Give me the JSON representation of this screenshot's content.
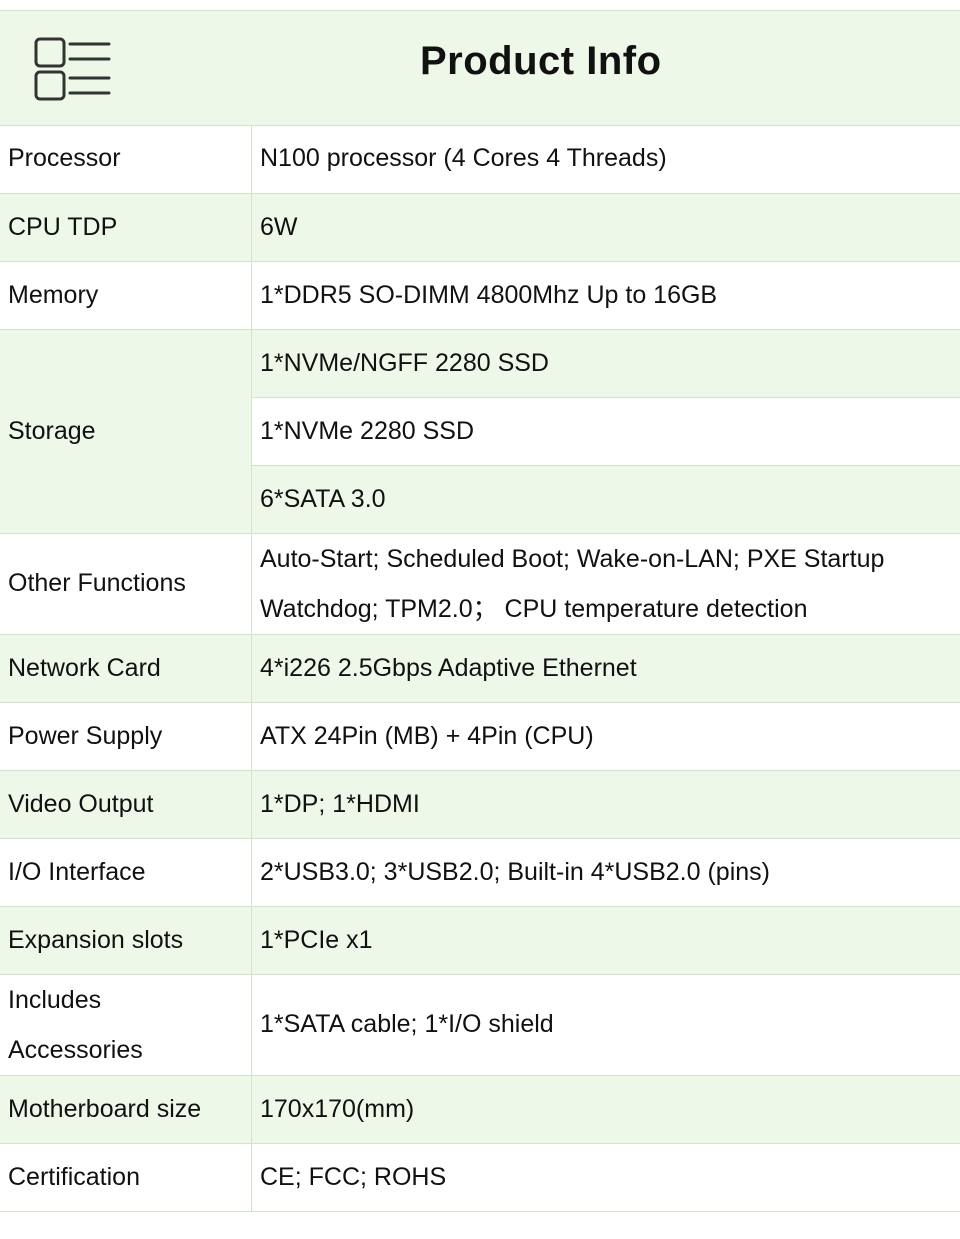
{
  "title": "Product Info",
  "header_icon": "list-icon",
  "colors": {
    "shaded": "#eef8e8",
    "border": "#cfe5c8"
  },
  "rows": [
    {
      "label": "Processor",
      "value": "N100 processor (4 Cores 4 Threads)"
    },
    {
      "label": "CPU TDP",
      "value": "6W"
    },
    {
      "label": "Memory",
      "value": "1*DDR5 SO-DIMM 4800Mhz Up to 16GB"
    },
    {
      "label": "Storage",
      "values": [
        "1*NVMe/NGFF 2280 SSD",
        "1*NVMe 2280 SSD",
        "6*SATA 3.0"
      ]
    },
    {
      "label": "Other Functions",
      "lines": [
        "Auto-Start; Scheduled Boot; Wake-on-LAN; PXE Startup",
        "Watchdog; TPM2.0； CPU temperature detection"
      ]
    },
    {
      "label": "Network Card",
      "value": "4*i226 2.5Gbps Adaptive Ethernet"
    },
    {
      "label": "Power Supply",
      "value": "ATX 24Pin (MB) + 4Pin (CPU)"
    },
    {
      "label": "Video Output",
      "value": "1*DP; 1*HDMI"
    },
    {
      "label": "I/O Interface",
      "value": "2*USB3.0; 3*USB2.0; Built-in 4*USB2.0 (pins)"
    },
    {
      "label": "Expansion slots",
      "value": "1*PCIe x1"
    },
    {
      "label_lines": [
        "Includes",
        "Accessories"
      ],
      "value": "1*SATA cable; 1*I/O shield"
    },
    {
      "label": "Motherboard size",
      "value": "170x170(mm)"
    },
    {
      "label": "Certification",
      "value": "CE; FCC; ROHS"
    }
  ]
}
